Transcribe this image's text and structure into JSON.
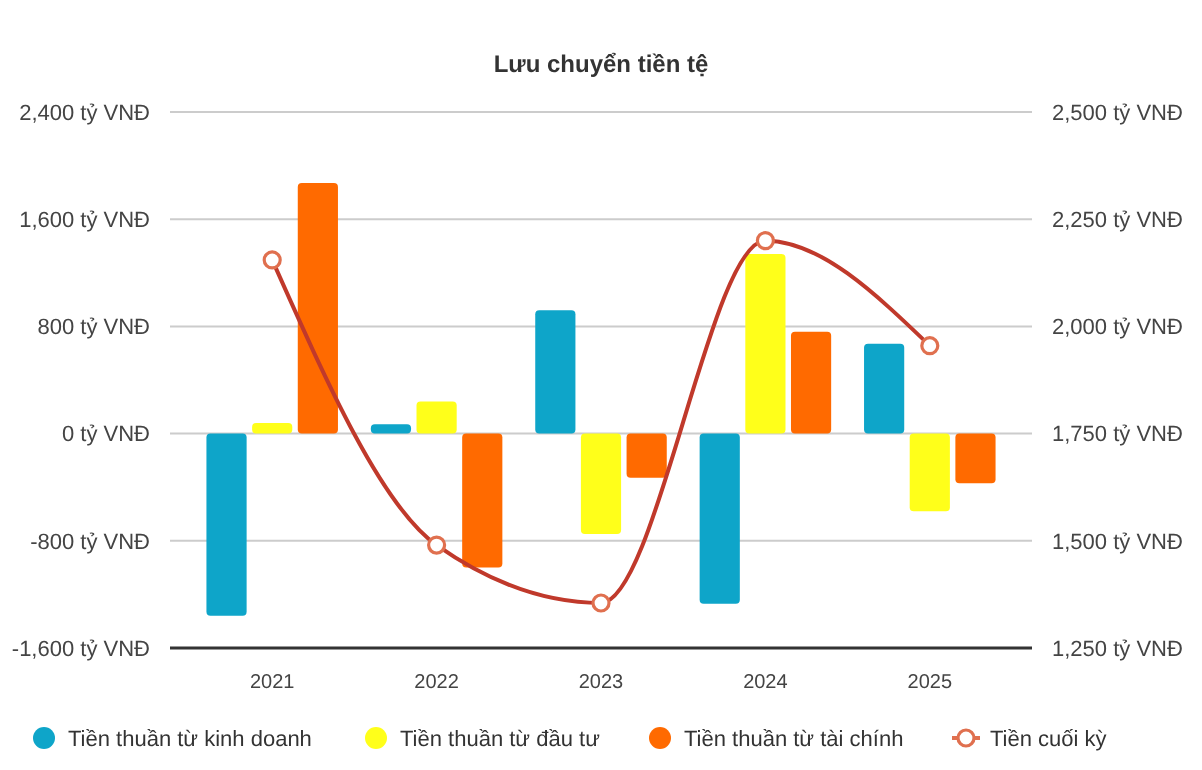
{
  "chart_data": {
    "type": "bar",
    "title": "Lưu chuyển tiền tệ",
    "categories": [
      "2021",
      "2022",
      "2023",
      "2024",
      "2025"
    ],
    "series": [
      {
        "name": "Tiền thuần từ kinh doanh",
        "color": "#0ea5c9",
        "values": [
          -1360,
          70,
          920,
          -1270,
          670
        ]
      },
      {
        "name": "Tiền thuần từ đầu tư",
        "color": "#ffff1a",
        "values": [
          80,
          240,
          -750,
          1340,
          -580
        ]
      },
      {
        "name": "Tiền thuần từ tài chính",
        "color": "#ff6a00",
        "values": [
          1870,
          -1000,
          -330,
          760,
          -370
        ]
      },
      {
        "name": "Tiền cuối kỳ",
        "type": "line",
        "axis": "y2",
        "color": "#c0392b",
        "marker": "circle",
        "values": [
          2155,
          1490,
          1355,
          2200,
          1955
        ]
      }
    ],
    "ylim": [
      -1600,
      2400
    ],
    "yticks": [
      {
        "value": -1600,
        "label": "-1,600 tỷ VNĐ"
      },
      {
        "value": -800,
        "label": "-800 tỷ VNĐ"
      },
      {
        "value": 0,
        "label": "0 tỷ VNĐ"
      },
      {
        "value": 800,
        "label": "800 tỷ VNĐ"
      },
      {
        "value": 1600,
        "label": "1,600 tỷ VNĐ"
      },
      {
        "value": 2400,
        "label": "2,400 tỷ VNĐ"
      }
    ],
    "y2lim": [
      1250,
      2500
    ],
    "y2ticks": [
      {
        "value": 1250,
        "label": "1,250 tỷ VNĐ"
      },
      {
        "value": 1500,
        "label": "1,500 tỷ VNĐ"
      },
      {
        "value": 1750,
        "label": "1,750 tỷ VNĐ"
      },
      {
        "value": 2000,
        "label": "2,000 tỷ VNĐ"
      },
      {
        "value": 2250,
        "label": "2,250 tỷ VNĐ"
      },
      {
        "value": 2500,
        "label": "2,500 tỷ VNĐ"
      }
    ],
    "grid": "y",
    "legend": "bottom"
  }
}
